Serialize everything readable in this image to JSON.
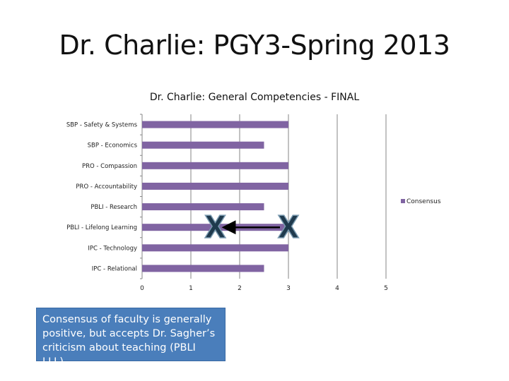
{
  "slide": {
    "title": "Dr. Charlie: PGY3-Spring 2013"
  },
  "note": {
    "text": "Consensus of faculty is generally positive, but accepts Dr. Sagher’s criticism about teaching (PBLI LLL)"
  },
  "annotation": {
    "marker_label": "X",
    "arrow_from_value": 3,
    "arrow_to_value": 1.5,
    "row": "PBLI - Lifelong Learning"
  },
  "colors": {
    "bar": "#8064a2",
    "grid": "#868686",
    "note_bg": "#4a7ebb",
    "marker_fill": "#1f3a4d",
    "marker_outline": "#7a9ab0"
  },
  "chart_data": {
    "type": "bar",
    "orientation": "horizontal",
    "title": "Dr. Charlie: General Competencies - FINAL",
    "categories": [
      "SBP - Safety & Systems",
      "SBP - Economics",
      "PRO - Compassion",
      "PRO - Accountability",
      "PBLI - Research",
      "PBLI - Lifelong Learning",
      "IPC - Technology",
      "IPC - Relational"
    ],
    "series": [
      {
        "name": "Consensus",
        "values": [
          3,
          2.5,
          3,
          3,
          2.5,
          3,
          3,
          2.5
        ]
      }
    ],
    "xlim": [
      0,
      5
    ],
    "xticks": [
      "0",
      "1",
      "2",
      "3",
      "4",
      "5"
    ],
    "grid": true,
    "legend": "right"
  }
}
